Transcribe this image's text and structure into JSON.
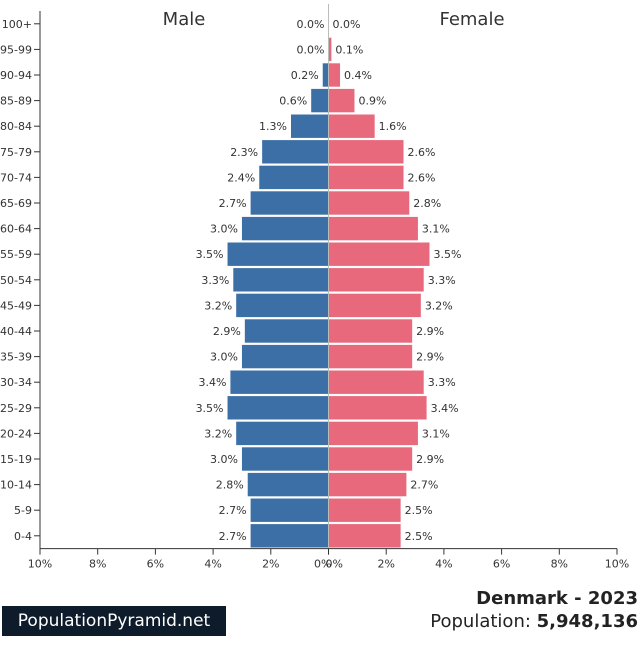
{
  "chart_data": {
    "type": "bar",
    "orientation": "horizontal-population-pyramid",
    "left_heading": "Male",
    "right_heading": "Female",
    "categories": [
      "100+",
      "95-99",
      "90-94",
      "85-89",
      "80-84",
      "75-79",
      "70-74",
      "65-69",
      "60-64",
      "55-59",
      "50-54",
      "45-49",
      "40-44",
      "35-39",
      "30-34",
      "25-29",
      "20-24",
      "15-19",
      "10-14",
      "5-9",
      "0-4"
    ],
    "series": [
      {
        "name": "Male",
        "color": "#3c6fa6",
        "values": [
          0.0,
          0.0,
          0.2,
          0.6,
          1.3,
          2.3,
          2.4,
          2.7,
          3.0,
          3.5,
          3.3,
          3.2,
          2.9,
          3.0,
          3.4,
          3.5,
          3.2,
          3.0,
          2.8,
          2.7,
          2.7
        ]
      },
      {
        "name": "Female",
        "color": "#e8687c",
        "values": [
          0.0,
          0.1,
          0.4,
          0.9,
          1.6,
          2.6,
          2.6,
          2.8,
          3.1,
          3.5,
          3.3,
          3.2,
          2.9,
          2.9,
          3.3,
          3.4,
          3.1,
          2.9,
          2.7,
          2.5,
          2.5
        ]
      }
    ],
    "male_labels": [
      "0.0%",
      "0.0%",
      "0.2%",
      "0.6%",
      "1.3%",
      "2.3%",
      "2.4%",
      "2.7%",
      "3.0%",
      "3.5%",
      "3.3%",
      "3.2%",
      "2.9%",
      "3.0%",
      "3.4%",
      "3.5%",
      "3.2%",
      "3.0%",
      "2.8%",
      "2.7%",
      "2.7%"
    ],
    "female_labels": [
      "0.0%",
      "0.1%",
      "0.4%",
      "0.9%",
      "1.6%",
      "2.6%",
      "2.6%",
      "2.8%",
      "3.1%",
      "3.5%",
      "3.3%",
      "3.2%",
      "2.9%",
      "2.9%",
      "3.3%",
      "3.4%",
      "3.1%",
      "2.9%",
      "2.7%",
      "2.5%",
      "2.5%"
    ],
    "x_ticks": [
      "10%",
      "8%",
      "6%",
      "4%",
      "2%",
      "0%",
      "0%",
      "2%",
      "4%",
      "6%",
      "8%",
      "10%"
    ],
    "xlim": [
      -10,
      10
    ],
    "grid": false
  },
  "footer": {
    "brand": "PopulationPyramid.net",
    "country_year": "Denmark - 2023",
    "population_label": "Population: ",
    "population_value": "5,948,136"
  }
}
